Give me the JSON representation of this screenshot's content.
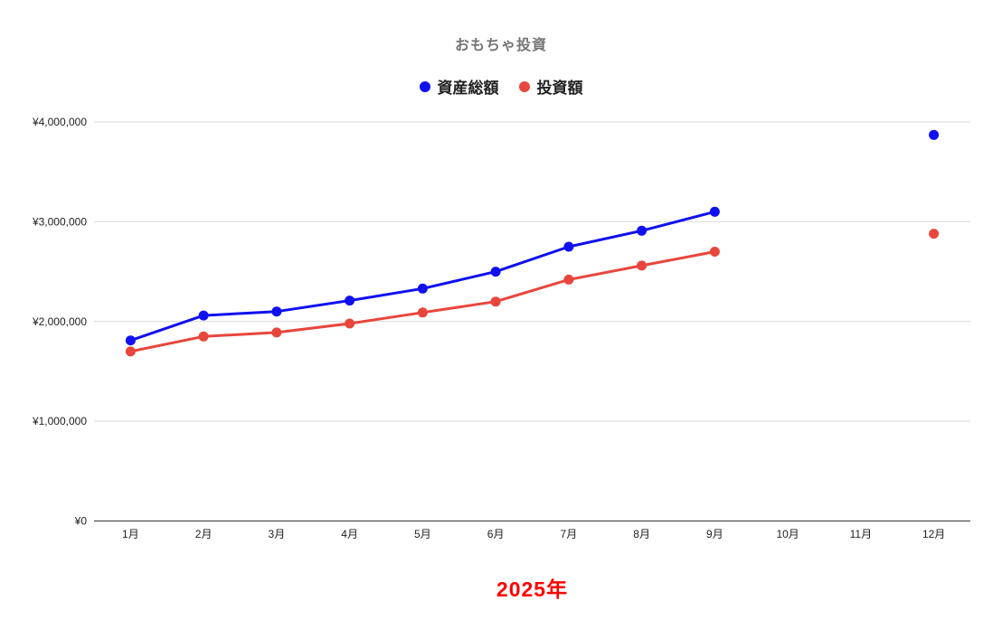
{
  "chart_data": {
    "type": "line",
    "title": "おもちゃ投資",
    "footer": "2025年",
    "categories": [
      "1月",
      "2月",
      "3月",
      "4月",
      "5月",
      "6月",
      "7月",
      "8月",
      "9月",
      "10月",
      "11月",
      "12月"
    ],
    "series": [
      {
        "name": "資産総額",
        "color": "#1010f0",
        "values": [
          1810000,
          2060000,
          2100000,
          2210000,
          2330000,
          2500000,
          2750000,
          2910000,
          3100000,
          null,
          null,
          3870000
        ]
      },
      {
        "name": "投資額",
        "color": "#e8463c",
        "values": [
          1700000,
          1850000,
          1890000,
          1980000,
          2090000,
          2200000,
          2420000,
          2560000,
          2700000,
          null,
          null,
          2880000
        ]
      }
    ],
    "y_ticks": [
      {
        "label": "¥0",
        "value": 0
      },
      {
        "label": "¥1,000,000",
        "value": 1000000
      },
      {
        "label": "¥2,000,000",
        "value": 2000000
      },
      {
        "label": "¥3,000,000",
        "value": 3000000
      },
      {
        "label": "¥4,000,000",
        "value": 4000000
      }
    ],
    "ylim": [
      0,
      4000000
    ],
    "xlabel": "2025年",
    "ylabel": "",
    "grid": "horizontal",
    "legend_position": "top",
    "colors": {
      "title": "#757575",
      "footer": "#ff0000",
      "axis_line": "#333333",
      "grid_line": "#d9d9d9",
      "tick_text": "#222222",
      "background": "#ffffff"
    }
  }
}
